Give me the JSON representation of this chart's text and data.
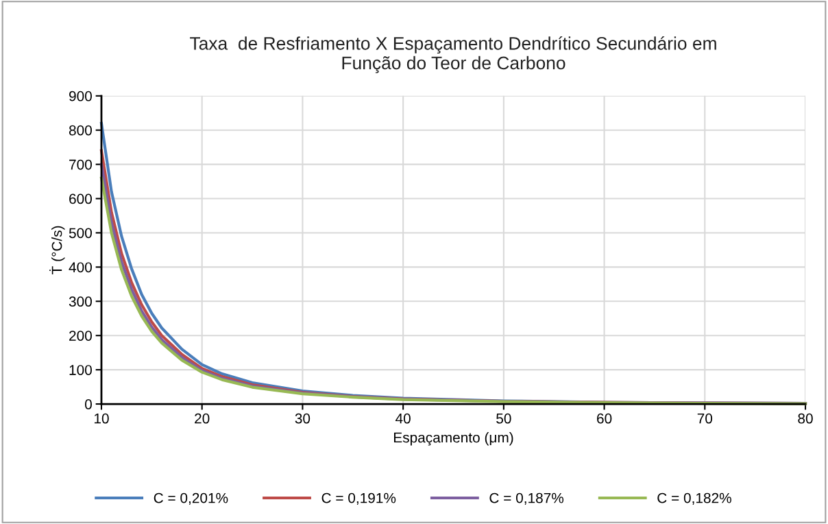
{
  "chart_data": {
    "type": "line",
    "title": "Taxa  de Resfriamento X Espaçamento Dendrítico Secundário em\nFunção do Teor de Carbono",
    "xlabel": "Espaçamento (μm)",
    "ylabel": "Ṫ (°C/s)",
    "x": [
      10,
      11,
      12,
      13,
      14,
      15,
      16,
      18,
      20,
      22,
      25,
      30,
      35,
      40,
      50,
      60,
      70,
      80
    ],
    "series": [
      {
        "name": "C = 0,201%",
        "color": "#4a7ebb",
        "values": [
          820,
          620,
          490,
          395,
          320,
          265,
          222,
          160,
          115,
          88,
          62,
          38,
          25,
          17,
          9,
          5,
          3,
          2
        ]
      },
      {
        "name": "C = 0,191%",
        "color": "#be4b48",
        "values": [
          740,
          560,
          440,
          355,
          290,
          240,
          200,
          145,
          104,
          80,
          56,
          34,
          22,
          15,
          8,
          5,
          3,
          2
        ]
      },
      {
        "name": "C = 0,187%",
        "color": "#7d5fa0",
        "values": [
          700,
          530,
          415,
          335,
          272,
          225,
          188,
          136,
          98,
          75,
          52,
          32,
          21,
          14,
          8,
          4,
          3,
          2
        ]
      },
      {
        "name": "C = 0,182%",
        "color": "#98b954",
        "values": [
          660,
          500,
          392,
          315,
          257,
          212,
          178,
          128,
          93,
          71,
          49,
          30,
          20,
          13,
          7,
          4,
          2,
          1
        ]
      }
    ],
    "xlim": [
      10,
      80
    ],
    "xticks": [
      10,
      20,
      30,
      40,
      50,
      60,
      70,
      80
    ],
    "ylim": [
      0,
      900
    ],
    "yticks": [
      0,
      100,
      200,
      300,
      400,
      500,
      600,
      700,
      800,
      900
    ],
    "grid": true,
    "legend": "bottom",
    "marker": "none",
    "line_style": "solid"
  }
}
